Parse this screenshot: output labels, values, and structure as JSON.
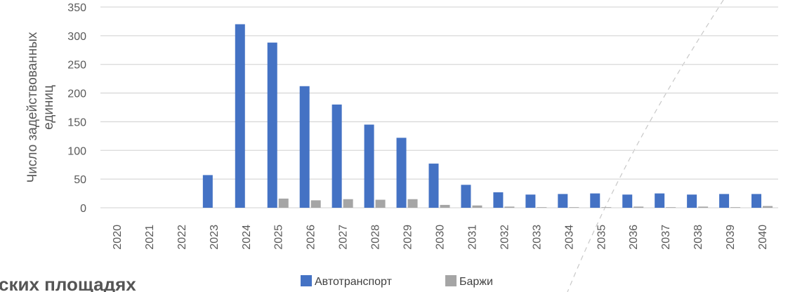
{
  "chart_data": {
    "type": "bar",
    "ylabel": "Число задействованных единиц",
    "ylim": [
      0,
      350
    ],
    "yticks": [
      0,
      50,
      100,
      150,
      200,
      250,
      300,
      350
    ],
    "grid": true,
    "legend_position": "bottom",
    "categories": [
      "2020",
      "2021",
      "2022",
      "2023",
      "2024",
      "2025",
      "2026",
      "2027",
      "2028",
      "2029",
      "2030",
      "2031",
      "2032",
      "2033",
      "2034",
      "2035",
      "2036",
      "2037",
      "2038",
      "2039",
      "2040"
    ],
    "series": [
      {
        "name": "Автотранспорт",
        "color": "#4472C4",
        "values": [
          0,
          0,
          0,
          57,
          320,
          288,
          212,
          180,
          145,
          122,
          77,
          40,
          27,
          23,
          24,
          25,
          23,
          25,
          23,
          24,
          24
        ]
      },
      {
        "name": "Баржи",
        "color": "#A5A5A5",
        "values": [
          0,
          0,
          0,
          0,
          0,
          16,
          13,
          15,
          14,
          15,
          5,
          4,
          2,
          1,
          1,
          1,
          2,
          1,
          2,
          1,
          3
        ]
      }
    ]
  },
  "background_text": "ских площадях"
}
